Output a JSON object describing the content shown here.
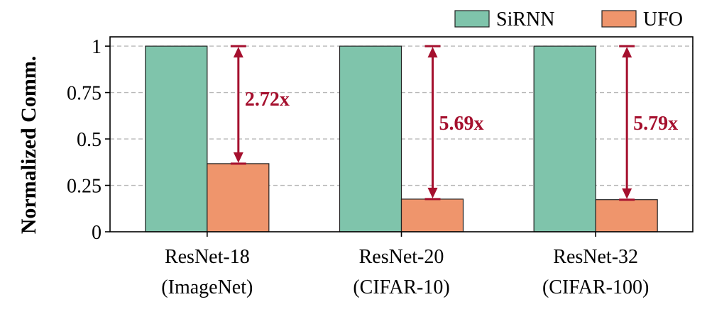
{
  "chart_data": {
    "type": "bar",
    "title": "",
    "xlabel": "",
    "ylabel": "Normalized Comm.",
    "ylim": [
      0,
      1.05
    ],
    "yticks": [
      0,
      0.25,
      0.5,
      0.75,
      1
    ],
    "ytick_labels": [
      "0",
      "0.25",
      "0.5",
      "0.75",
      "1"
    ],
    "grid": "y-dashed",
    "legend_position": "top-right",
    "categories": [
      [
        "ResNet-18",
        "(ImageNet)"
      ],
      [
        "ResNet-20",
        "(CIFAR-10)"
      ],
      [
        "ResNet-32",
        "(CIFAR-100)"
      ]
    ],
    "series": [
      {
        "name": "SiRNN",
        "color": "#7fc4ab",
        "values": [
          1,
          1,
          1
        ]
      },
      {
        "name": "UFO",
        "color": "#ef956c",
        "values": [
          0.367,
          0.176,
          0.173
        ]
      }
    ],
    "annotations": [
      {
        "category_index": 0,
        "text": "2.72x",
        "from": 0.367,
        "to": 1,
        "color": "#a5102e"
      },
      {
        "category_index": 1,
        "text": "5.69x",
        "from": 0.176,
        "to": 1,
        "color": "#a5102e"
      },
      {
        "category_index": 2,
        "text": "5.79x",
        "from": 0.173,
        "to": 1,
        "color": "#a5102e"
      }
    ]
  }
}
